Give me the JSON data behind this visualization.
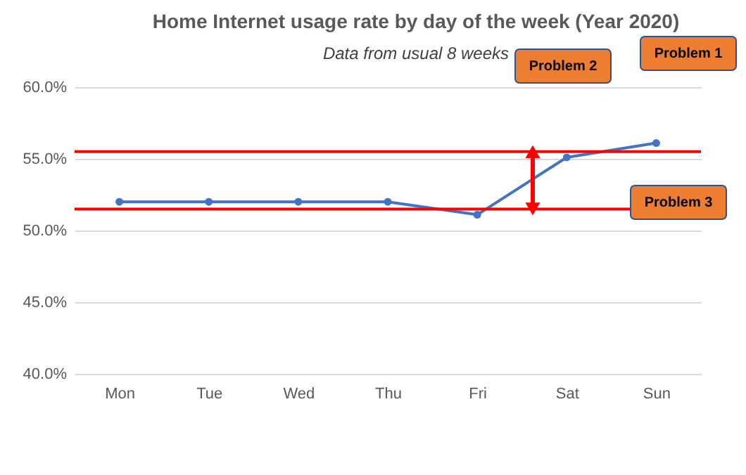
{
  "chart_data": {
    "type": "line",
    "title": "Home Internet usage rate by day of the week (Year 2020)",
    "subtitle": "Data from usual 8 weeks",
    "categories": [
      "Mon",
      "Tue",
      "Wed",
      "Thu",
      "Fri",
      "Sat",
      "Sun"
    ],
    "series": [
      {
        "color": "#4472c4",
        "values": [
          52.0,
          52.0,
          52.0,
          52.0,
          51.1,
          55.1,
          56.1
        ]
      }
    ],
    "ylim": [
      40,
      60
    ],
    "yticks": [
      {
        "value": 40,
        "label": "40.0%"
      },
      {
        "value": 45,
        "label": "45.0%"
      },
      {
        "value": 50,
        "label": "50.0%"
      },
      {
        "value": 55,
        "label": "55.0%"
      },
      {
        "value": 60,
        "label": "60.0%"
      }
    ],
    "ref_lines": [
      {
        "axis": "y",
        "value": 51.5,
        "color": "#ff0000"
      },
      {
        "axis": "y",
        "value": 55.5,
        "color": "#ff0000"
      }
    ],
    "annotations": [
      "Problem 1",
      "Problem 2",
      "Problem 3"
    ],
    "grid": "y",
    "marker": "circle",
    "line_style": "solid"
  }
}
